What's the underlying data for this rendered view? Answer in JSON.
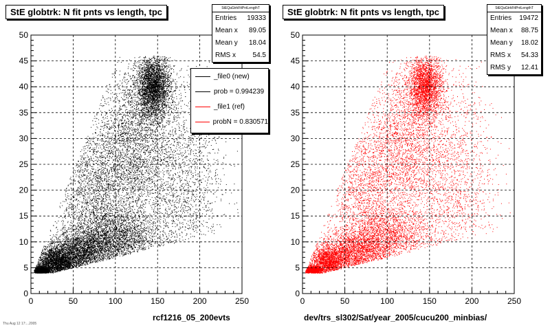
{
  "footer_text": "Thu Aug 12 17:...2005",
  "chart_data": [
    {
      "type": "scatter",
      "title": "StE globtrk: N fit pnts vs length, tpc",
      "xlabel": "rcf1216_05_200evts",
      "ylabel": "",
      "xlim": [
        0,
        250
      ],
      "ylim": [
        0,
        50
      ],
      "xticks": [
        "0",
        "50",
        "100",
        "150",
        "200",
        "250"
      ],
      "yticks": [
        "0",
        "5",
        "10",
        "15",
        "20",
        "25",
        "30",
        "35",
        "40",
        "45",
        "50"
      ],
      "grid": true,
      "color": "#000000",
      "stats": {
        "name": "StEQaGtrkFitPntLengthT",
        "rows": [
          {
            "label": "Entries",
            "value": "19333"
          },
          {
            "label": "Mean x",
            "value": "89.05"
          },
          {
            "label": "Mean y",
            "value": "18.04"
          },
          {
            "label": "RMS x",
            "value": "54.5"
          }
        ]
      },
      "legend": [
        {
          "label": "_file0 (new)",
          "color": "#000000"
        },
        {
          "label": "prob = 0.994239",
          "color": "#000000"
        },
        {
          "label": "_file1 (ref)",
          "color": "#ff0000"
        },
        {
          "label": "probN = 0.830571",
          "color": "#ff0000"
        }
      ],
      "legend_position": "top-right",
      "clusters": [
        {
          "x": 12,
          "y": 4.5,
          "sx": 5,
          "sy": 0.4,
          "n": 1500
        },
        {
          "x": 30,
          "y": 6,
          "sx": 12,
          "sy": 1.5,
          "n": 2600
        },
        {
          "x": 60,
          "y": 8,
          "sx": 20,
          "sy": 2,
          "n": 2600
        },
        {
          "x": 100,
          "y": 11,
          "sx": 25,
          "sy": 2.5,
          "n": 2000
        },
        {
          "x": 75,
          "y": 20,
          "sx": 25,
          "sy": 7,
          "n": 2400
        },
        {
          "x": 120,
          "y": 30,
          "sx": 20,
          "sy": 7,
          "n": 2200
        },
        {
          "x": 145,
          "y": 40,
          "sx": 10,
          "sy": 3,
          "n": 3200
        },
        {
          "x": 175,
          "y": 25,
          "sx": 25,
          "sy": 9,
          "n": 1500
        },
        {
          "x": 150,
          "y": 15,
          "sx": 40,
          "sy": 6,
          "n": 800
        }
      ]
    },
    {
      "type": "scatter",
      "title": "StE globtrk: N fit pnts vs length, tpc",
      "xlabel": "dev/trs_sl302/Sat/year_2005/cucu200_minbias/",
      "ylabel": "",
      "xlim": [
        0,
        250
      ],
      "ylim": [
        0,
        50
      ],
      "xticks": [
        "0",
        "50",
        "100",
        "150",
        "200",
        "250"
      ],
      "yticks": [
        "0",
        "5",
        "10",
        "15",
        "20",
        "25",
        "30",
        "35",
        "40",
        "45",
        "50"
      ],
      "grid": true,
      "color": "#ff0000",
      "stats": {
        "name": "StEQaGtrkFitPntLengthT",
        "rows": [
          {
            "label": "Entries",
            "value": "19472"
          },
          {
            "label": "Mean x",
            "value": "88.75"
          },
          {
            "label": "Mean y",
            "value": "18.02"
          },
          {
            "label": "RMS x",
            "value": "54.33"
          },
          {
            "label": "RMS y",
            "value": "12.41"
          }
        ]
      },
      "clusters": [
        {
          "x": 12,
          "y": 4.5,
          "sx": 5,
          "sy": 0.4,
          "n": 1200
        },
        {
          "x": 30,
          "y": 6,
          "sx": 12,
          "sy": 1.5,
          "n": 2000
        },
        {
          "x": 60,
          "y": 8,
          "sx": 20,
          "sy": 2,
          "n": 2000
        },
        {
          "x": 100,
          "y": 11,
          "sx": 25,
          "sy": 2.5,
          "n": 1600
        },
        {
          "x": 75,
          "y": 20,
          "sx": 25,
          "sy": 7,
          "n": 2000
        },
        {
          "x": 120,
          "y": 30,
          "sx": 20,
          "sy": 7,
          "n": 1800
        },
        {
          "x": 145,
          "y": 40,
          "sx": 10,
          "sy": 3,
          "n": 2600
        },
        {
          "x": 175,
          "y": 25,
          "sx": 25,
          "sy": 9,
          "n": 1300
        },
        {
          "x": 150,
          "y": 15,
          "sx": 40,
          "sy": 6,
          "n": 700
        }
      ]
    }
  ]
}
